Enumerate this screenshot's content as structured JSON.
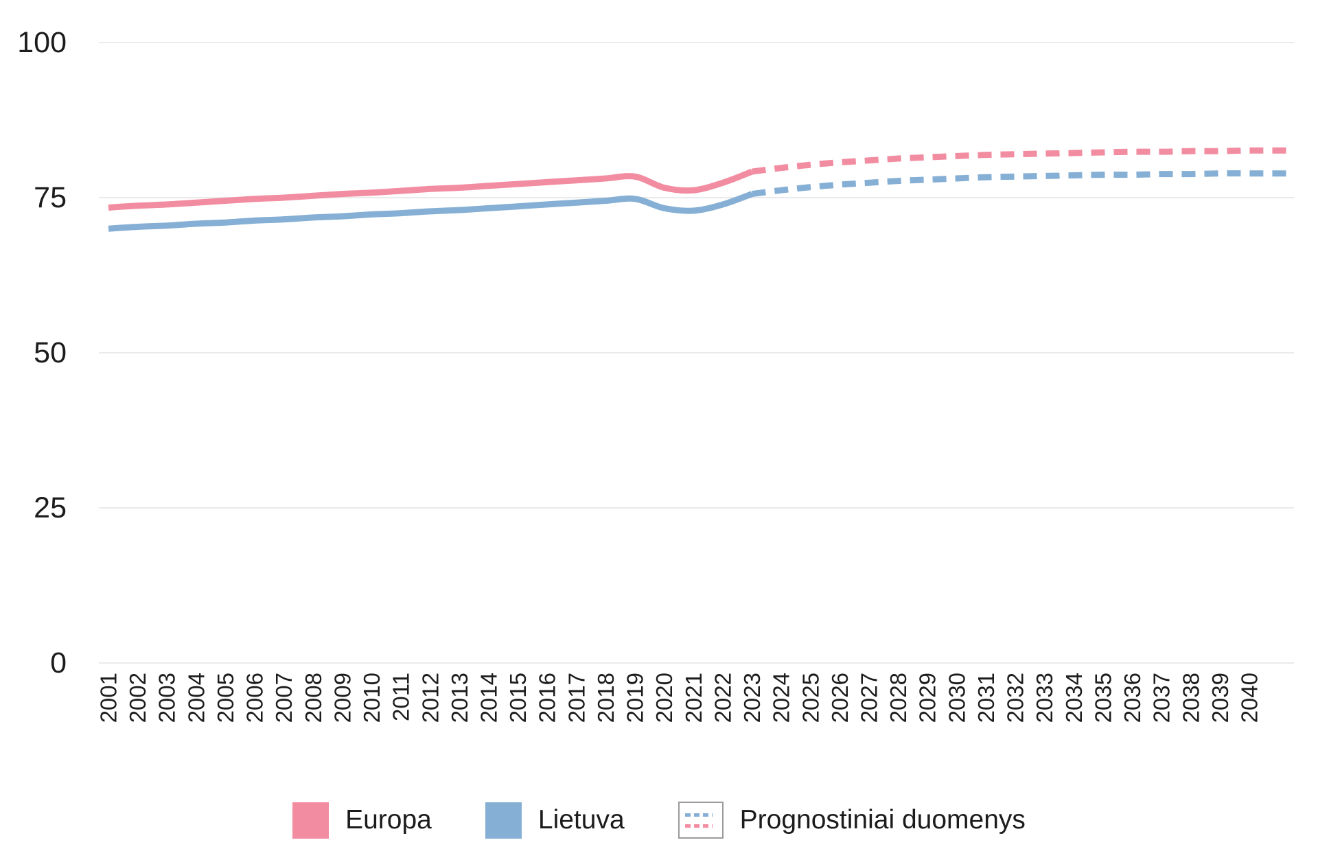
{
  "legend": {
    "items": [
      {
        "label": "Europa",
        "type": "swatch",
        "color": "#f28ca1"
      },
      {
        "label": "Lietuva",
        "type": "swatch",
        "color": "#85afd4"
      },
      {
        "label": "Prognostiniai duomenys",
        "type": "dashed-box"
      }
    ]
  },
  "colors": {
    "europa": "#f28ca1",
    "lietuva": "#85afd4",
    "grid": "#eaeaea",
    "text": "#1c1c1c",
    "legend_box_border": "#9b9b9b"
  },
  "chart_data": {
    "type": "line",
    "title": "",
    "xlabel": "",
    "ylabel": "",
    "x": [
      2001,
      2002,
      2003,
      2004,
      2005,
      2006,
      2007,
      2008,
      2009,
      2010,
      2011,
      2012,
      2013,
      2014,
      2015,
      2016,
      2017,
      2018,
      2019,
      2020,
      2021,
      2022,
      2023,
      2024,
      2025,
      2026,
      2027,
      2028,
      2029,
      2030,
      2031,
      2032,
      2033,
      2034,
      2035,
      2036,
      2037,
      2038,
      2039,
      2040
    ],
    "ylim": [
      0,
      100
    ],
    "yticks": [
      0,
      25,
      50,
      75,
      100
    ],
    "grid": "horizontal",
    "legend_position": "bottom",
    "forecast_start_year": 2023,
    "forecast_style": "dashed",
    "forecast_extends_to_right_edge": true,
    "series": [
      {
        "name": "Europa",
        "color": "#f28ca1",
        "values": [
          73.4,
          73.7,
          73.9,
          74.2,
          74.5,
          74.8,
          75.0,
          75.3,
          75.6,
          75.8,
          76.1,
          76.4,
          76.6,
          76.9,
          77.2,
          77.5,
          77.8,
          78.1,
          78.4,
          76.6,
          76.2,
          77.4,
          79.2,
          79.8,
          80.3,
          80.7,
          81.0,
          81.3,
          81.5,
          81.7,
          81.9,
          82.0,
          82.1,
          82.2,
          82.3,
          82.4,
          82.4,
          82.5,
          82.5,
          82.6
        ]
      },
      {
        "name": "Lietuva",
        "color": "#85afd4",
        "values": [
          70.0,
          70.3,
          70.5,
          70.8,
          71.0,
          71.3,
          71.5,
          71.8,
          72.0,
          72.3,
          72.5,
          72.8,
          73.0,
          73.3,
          73.6,
          73.9,
          74.2,
          74.5,
          74.8,
          73.3,
          72.9,
          73.9,
          75.6,
          76.2,
          76.7,
          77.1,
          77.4,
          77.7,
          77.9,
          78.1,
          78.3,
          78.4,
          78.5,
          78.6,
          78.7,
          78.7,
          78.8,
          78.8,
          78.9,
          78.9
        ]
      }
    ]
  }
}
